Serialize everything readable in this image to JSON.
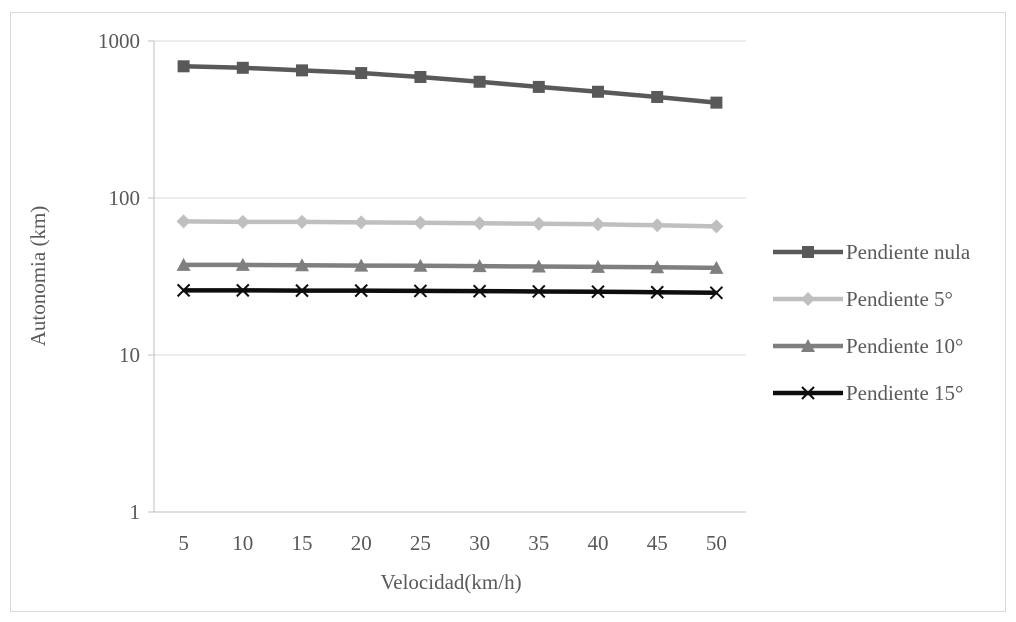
{
  "chart_data": {
    "type": "line",
    "title": "",
    "xlabel": "Velocidad(km/h)",
    "ylabel": "Autonomia (km)",
    "yscale": "log",
    "ylim": [
      1,
      1000
    ],
    "yticks": [
      "1",
      "10",
      "100",
      "1000"
    ],
    "grid": "horizontal",
    "legend": "right",
    "categories": [
      "5",
      "10",
      "15",
      "20",
      "25",
      "30",
      "35",
      "40",
      "45",
      "50"
    ],
    "series": [
      {
        "name": "Pendiente nula",
        "marker": "square",
        "color": "#595959",
        "values": [
          690,
          675,
          650,
          625,
          590,
          550,
          510,
          475,
          440,
          405
        ]
      },
      {
        "name": "Pendiente 5°",
        "marker": "diamond",
        "color": "#bfbfbf",
        "values": [
          71,
          70.5,
          70.5,
          70,
          69.5,
          69,
          68.5,
          68,
          67,
          66
        ]
      },
      {
        "name": "Pendiente 10°",
        "marker": "triangle",
        "color": "#7f7f7f",
        "values": [
          37.5,
          37.5,
          37.3,
          37.1,
          37,
          36.8,
          36.6,
          36.4,
          36.2,
          35.9
        ]
      },
      {
        "name": "Pendiente 15°",
        "marker": "x",
        "color": "#0d0d0d",
        "values": [
          25.8,
          25.8,
          25.7,
          25.7,
          25.6,
          25.5,
          25.4,
          25.3,
          25.1,
          24.9
        ]
      }
    ]
  }
}
